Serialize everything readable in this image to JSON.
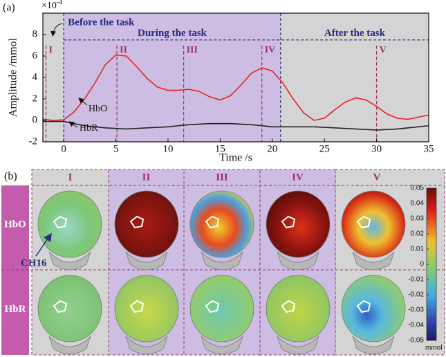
{
  "chart_data": {
    "type": "line",
    "panel_label": "(a)",
    "xlabel": "Time /s",
    "ylabel": "Amplitude /mmol",
    "multiplier": "×10",
    "exponent": "-4",
    "x": [
      -2,
      -1,
      0,
      1,
      2,
      3,
      4,
      5,
      6,
      7,
      8,
      9,
      10,
      11,
      12,
      13,
      14,
      15,
      16,
      17,
      18,
      19,
      20,
      21,
      22,
      23,
      24,
      25,
      26,
      27,
      28,
      29,
      30,
      31,
      32,
      33,
      34,
      35
    ],
    "series": [
      {
        "name": "HbO",
        "color": "#e8231d",
        "values": [
          0.1,
          0,
          0.05,
          0.8,
          2.0,
          3.5,
          5.2,
          6.1,
          6.0,
          5.0,
          3.9,
          3.1,
          2.8,
          2.8,
          2.9,
          2.7,
          2.2,
          1.9,
          2.3,
          3.3,
          4.4,
          4.9,
          4.6,
          3.5,
          2.0,
          0.7,
          0,
          0.2,
          1.0,
          1.7,
          2.1,
          1.9,
          1.3,
          0.6,
          0.2,
          0.1,
          0.3,
          0.5
        ]
      },
      {
        "name": "HbR",
        "color": "#222222",
        "values": [
          -0.1,
          -0.1,
          -0.1,
          -0.3,
          -0.5,
          -0.6,
          -0.7,
          -0.75,
          -0.8,
          -0.75,
          -0.7,
          -0.65,
          -0.6,
          -0.5,
          -0.4,
          -0.35,
          -0.3,
          -0.3,
          -0.3,
          -0.35,
          -0.4,
          -0.5,
          -0.6,
          -0.6,
          -0.6,
          -0.6,
          -0.6,
          -0.65,
          -0.7,
          -0.75,
          -0.8,
          -0.85,
          -0.9,
          -0.85,
          -0.8,
          -0.7,
          -0.6,
          -0.5
        ]
      }
    ],
    "xlim": [
      -2,
      35
    ],
    "xticks": [
      0,
      5,
      10,
      15,
      20,
      25,
      30,
      35
    ],
    "ylim": [
      -2,
      10
    ],
    "yticks": [
      -2,
      0,
      2,
      4,
      6,
      8
    ],
    "phases": [
      {
        "label": "Before the task",
        "start": -2,
        "end": 0,
        "color": "#d4d4d4"
      },
      {
        "label": "During the task",
        "start": 0,
        "end": 20.8,
        "color": "#cdbde3"
      },
      {
        "label": "After the task",
        "start": 20.8,
        "end": 35,
        "color": "#d4d4d4"
      }
    ],
    "phase_line": 7.5,
    "markers": [
      {
        "label": "I",
        "x": -1.7
      },
      {
        "label": "II",
        "x": 5.1
      },
      {
        "label": "III",
        "x": 11.5
      },
      {
        "label": "IV",
        "x": 19
      },
      {
        "label": "V",
        "x": 30
      }
    ]
  },
  "panel_b": {
    "label": "(b)",
    "columns": [
      "I",
      "II",
      "III",
      "IV",
      "V"
    ],
    "rows": [
      "HbO",
      "HbR"
    ],
    "annotation": "CH16",
    "colorbar": {
      "lim": [
        -0.05,
        0.05
      ],
      "ticks": [
        0.05,
        0.04,
        0.03,
        0.02,
        0.01,
        0,
        -0.01,
        -0.02,
        -0.03,
        -0.04,
        -0.05
      ],
      "unit": "mmol"
    }
  }
}
